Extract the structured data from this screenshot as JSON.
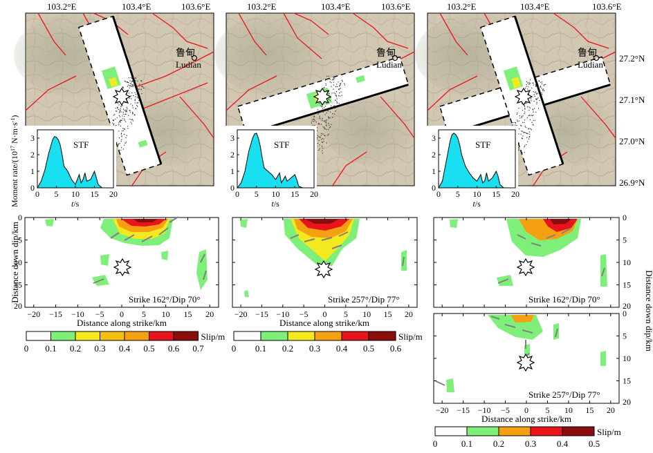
{
  "colors": {
    "terrain": "#d2c7b3",
    "fault": "#e8141b",
    "stf_fill": "#19e0f0",
    "slip_green": "#7ef07a",
    "slip_yellow": "#f2ea1e",
    "slip_orange": "#f5a010",
    "slip_red": "#e8141b",
    "slip_darkred": "#8a0c0c",
    "rake_arrow": "#808080"
  },
  "chart_data": [
    {
      "type": "map",
      "id": "map-a",
      "lon_ticks": [
        "103.2°E",
        "103.4°E",
        "103.6°E"
      ],
      "town": "鲁甸",
      "town_en": "Ludian",
      "inset": {
        "type": "area",
        "title": "STF",
        "xlabel": "t/s",
        "ylabel": "Moment rate/(10^17 N·m·s^-1)",
        "x_ticks": [
          "0",
          "5",
          "10",
          "15",
          "20"
        ],
        "y_ticks": [
          "0",
          "1",
          "2",
          "3"
        ],
        "xlim": [
          0,
          20
        ],
        "ylim": [
          0,
          3.5
        ],
        "x": [
          0,
          1,
          2,
          3,
          4,
          4.5,
          5,
          5.5,
          6,
          6.5,
          7,
          8,
          9,
          10,
          11,
          11.5,
          12,
          12.5,
          13,
          14,
          15,
          15.5,
          16,
          17
        ],
        "y": [
          0,
          0.4,
          1.1,
          2.1,
          2.9,
          3.1,
          3.05,
          2.9,
          2.6,
          2.0,
          1.3,
          1.0,
          0.5,
          0.2,
          0.8,
          0.3,
          0.5,
          0.9,
          0.4,
          0.5,
          1.0,
          0.6,
          0.2,
          0
        ]
      }
    },
    {
      "type": "map",
      "id": "map-b",
      "lon_ticks": [
        "103.2°E",
        "103.4°E",
        "103.6°E"
      ],
      "town": "鲁甸",
      "town_en": "Ludian",
      "inset": {
        "type": "area",
        "title": "STF",
        "xlabel": "t/s",
        "x_ticks": [
          "0",
          "5",
          "10",
          "15",
          "20"
        ],
        "y_ticks": [
          "0",
          "1",
          "2",
          "3"
        ],
        "xlim": [
          0,
          20
        ],
        "ylim": [
          0,
          3.5
        ],
        "x": [
          0,
          1,
          2,
          3,
          4,
          4.5,
          5,
          5.5,
          6,
          6.5,
          7,
          8,
          9,
          10,
          11,
          11.5,
          12,
          12.5,
          13,
          14,
          15,
          15.5,
          16,
          17
        ],
        "y": [
          0,
          0.3,
          1.0,
          2.2,
          3.0,
          3.25,
          3.3,
          3.0,
          2.5,
          1.8,
          1.2,
          1.0,
          0.8,
          0.5,
          0.9,
          0.3,
          0.5,
          0.7,
          0.4,
          0.6,
          0.8,
          0.5,
          0.1,
          0
        ]
      }
    },
    {
      "type": "map",
      "id": "map-c",
      "lon_ticks": [
        "103.2°E",
        "103.4°E",
        "103.6°E"
      ],
      "lat_ticks": [
        "27.2°N",
        "27.1°N",
        "27.0°N",
        "26.9°N"
      ],
      "town": "鲁甸",
      "town_en": "Ludian",
      "inset": {
        "type": "area",
        "title": "STF",
        "xlabel": "t/s",
        "x_ticks": [
          "0",
          "5",
          "10",
          "15",
          "20"
        ],
        "y_ticks": [
          "0",
          "1",
          "2",
          "3"
        ],
        "xlim": [
          0,
          20
        ],
        "ylim": [
          0,
          3.5
        ],
        "x": [
          0,
          1,
          2,
          3,
          3.5,
          4,
          4.5,
          5,
          5.5,
          6,
          7,
          8,
          9,
          10,
          11,
          11.5,
          12,
          12.5,
          13,
          14,
          15,
          15.5,
          16,
          17
        ],
        "y": [
          0,
          0.4,
          1.6,
          2.8,
          3.2,
          3.3,
          3.2,
          3.0,
          2.6,
          2.0,
          1.3,
          0.9,
          0.6,
          0.4,
          0.8,
          0.3,
          0.4,
          0.9,
          0.4,
          0.6,
          1.0,
          0.7,
          0.2,
          0
        ]
      }
    },
    {
      "type": "heatmap",
      "id": "slip-a",
      "label": "Strike 162°/Dip 70°",
      "xlabel": "Distance along strike/km",
      "ylabel": "Distance down dip/km",
      "x_ticks": [
        "−20",
        "−15",
        "−10",
        "−5",
        "0",
        "5",
        "10",
        "15",
        "20"
      ],
      "y_ticks": [
        "0",
        "5",
        "10",
        "15",
        "20"
      ],
      "xlim": [
        -22,
        22
      ],
      "ylim": [
        0,
        20
      ],
      "colorbar": {
        "label": "Slip/m",
        "ticks": [
          "0",
          "0.1",
          "0.2",
          "0.3",
          "0.4",
          "0.5",
          "0.6",
          "0.7"
        ]
      },
      "peak_slip_m": 0.7
    },
    {
      "type": "heatmap",
      "id": "slip-b",
      "label": "Strike 257°/Dip 77°",
      "xlabel": "Distance along strike/km",
      "x_ticks": [
        "−20",
        "−15",
        "−10",
        "−5",
        "0",
        "5",
        "10",
        "15",
        "20"
      ],
      "xlim": [
        -22,
        22
      ],
      "ylim": [
        0,
        20
      ],
      "colorbar": {
        "label": "Slip/m",
        "ticks": [
          "0",
          "0.1",
          "0.2",
          "0.3",
          "0.4",
          "0.5",
          "0.6"
        ]
      },
      "peak_slip_m": 0.6
    },
    {
      "type": "heatmap",
      "id": "slip-c1",
      "label": "Strike 162°/Dip 70°",
      "ylabel": "Distance down dip/km",
      "y_ticks": [
        "0",
        "5",
        "10",
        "15",
        "20"
      ],
      "xlim": [
        -22,
        22
      ],
      "ylim": [
        0,
        20
      ]
    },
    {
      "type": "heatmap",
      "id": "slip-c2",
      "label": "Strike 257°/Dip 77°",
      "xlabel": "Distance along strike/km",
      "x_ticks": [
        "−20",
        "−15",
        "−10",
        "−5",
        "0",
        "5",
        "10",
        "15",
        "20"
      ],
      "y_ticks": [
        "0",
        "5",
        "10",
        "15",
        "20"
      ],
      "xlim": [
        -22,
        22
      ],
      "ylim": [
        0,
        20
      ],
      "colorbar": {
        "label": "Slip/m",
        "ticks": [
          "0",
          "0.1",
          "0.2",
          "0.3",
          "0.4",
          "0.5"
        ]
      },
      "peak_slip_m": 0.5
    }
  ],
  "labels": {
    "ylabel_moment": "Moment rate/(10",
    "ylabel_moment_exp": "17",
    "ylabel_moment_tail": " N·m·s",
    "ylabel_moment_exp2": "-1",
    "ylabel_moment_end": ")",
    "t_s": "t",
    "t_unit": "/s"
  }
}
